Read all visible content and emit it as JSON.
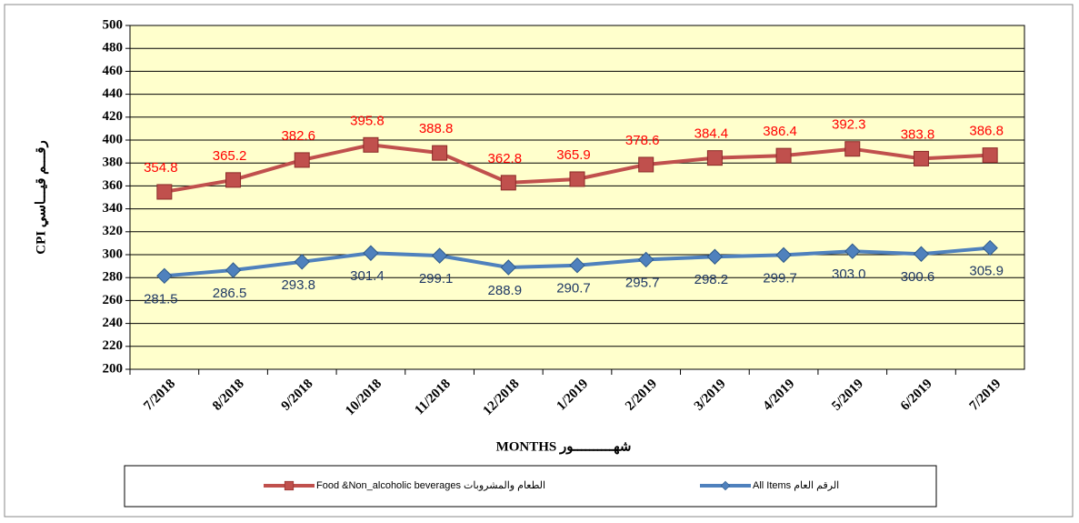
{
  "chart_data": {
    "type": "line",
    "categories": [
      "7/2018",
      "8/2018",
      "9/2018",
      "10/2018",
      "11/2018",
      "12/2018",
      "1/2019",
      "2/2019",
      "3/2019",
      "4/2019",
      "5/2019",
      "6/2019",
      "7/2019"
    ],
    "series": [
      {
        "name": "Food &Non_alcoholic beverages  الطعام والمشروبات",
        "color": "#c0504d",
        "marker": "square",
        "label_color": "#ff0000",
        "values": [
          354.8,
          365.2,
          382.6,
          395.8,
          388.8,
          362.8,
          365.9,
          378.6,
          384.4,
          386.4,
          392.3,
          383.8,
          386.8
        ]
      },
      {
        "name": "All Items  الرقم العام",
        "color": "#4f81bd",
        "marker": "diamond",
        "label_color": "#1f3864",
        "values": [
          281.5,
          286.5,
          293.8,
          301.4,
          299.1,
          288.9,
          290.7,
          295.7,
          298.2,
          299.7,
          303.0,
          300.6,
          305.9
        ],
        "value_labels": [
          "281.5",
          "286.5",
          "293.8",
          "301.4",
          "299.1",
          "288.9",
          "290.7",
          "295.7",
          "298.2",
          "299.7",
          "303.0",
          "300.6",
          "305.9"
        ]
      }
    ],
    "ylabel": "CPI   رقـــم قيـــاسي",
    "xlabel": "MONTHS   شهــــــــــور",
    "ylim": [
      200,
      500
    ],
    "yticks": [
      200,
      220,
      240,
      260,
      280,
      300,
      320,
      340,
      360,
      380,
      400,
      420,
      440,
      460,
      480,
      500
    ],
    "grid": true
  }
}
